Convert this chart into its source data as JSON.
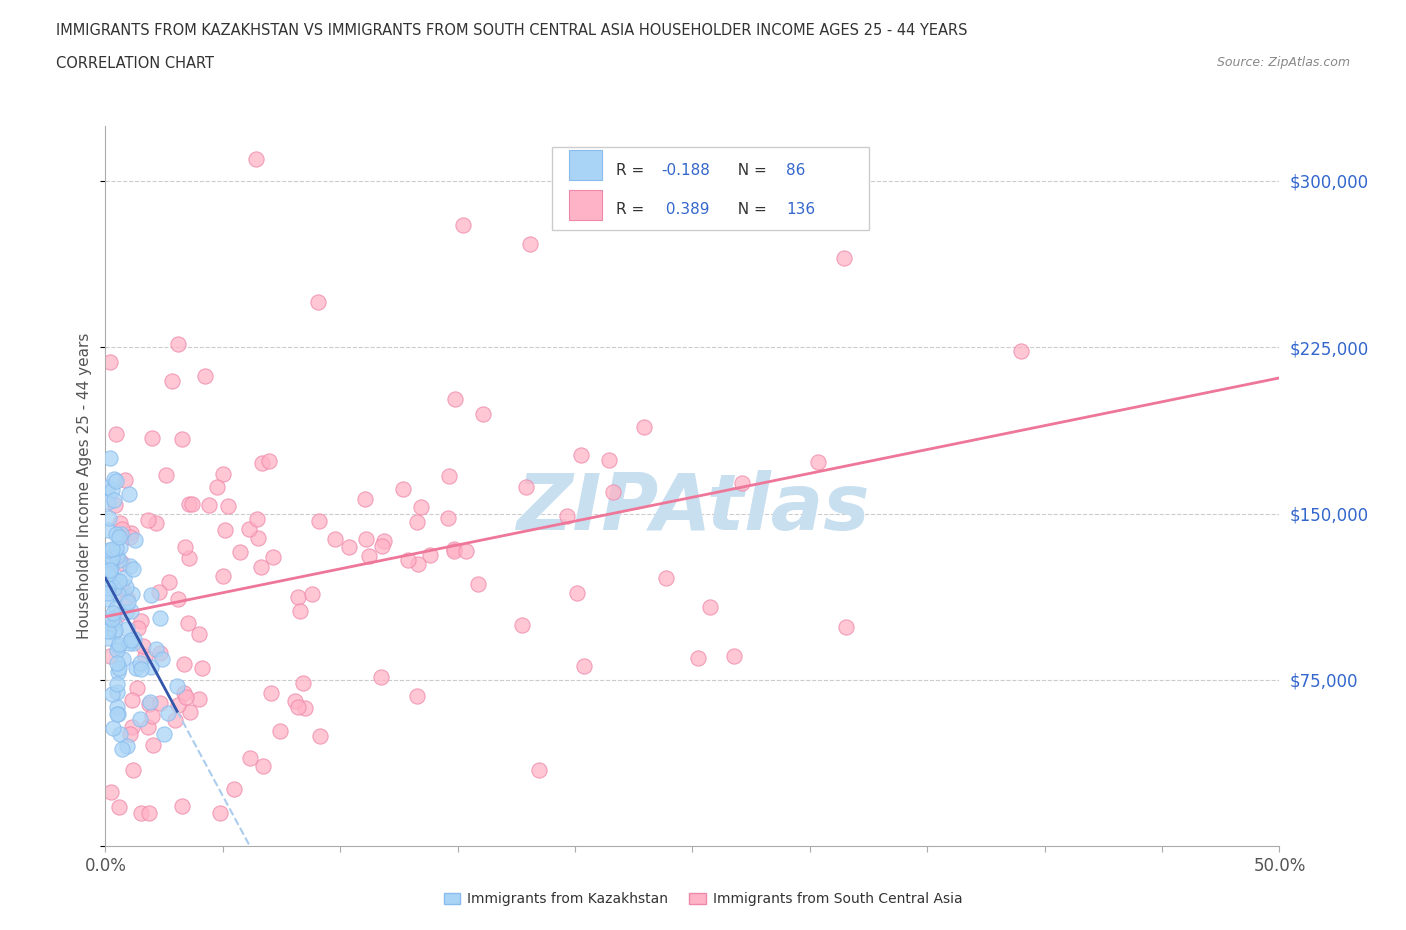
{
  "title_line1": "IMMIGRANTS FROM KAZAKHSTAN VS IMMIGRANTS FROM SOUTH CENTRAL ASIA HOUSEHOLDER INCOME AGES 25 - 44 YEARS",
  "title_line2": "CORRELATION CHART",
  "source_text": "Source: ZipAtlas.com",
  "ylabel": "Householder Income Ages 25 - 44 years",
  "xlim": [
    0.0,
    0.5
  ],
  "ylim": [
    0,
    325000
  ],
  "grid_color": "#cccccc",
  "background_color": "#ffffff",
  "kazakhstan_color": "#aad4f5",
  "kazakhstan_edge": "#88bbee",
  "sca_color": "#ffb3c6",
  "sca_edge": "#ee88aa",
  "regression_kaz_color": "#3355aa",
  "regression_kaz_dash_color": "#aaccee",
  "regression_sca_color": "#ee7799",
  "watermark_text": "ZIPAtlas",
  "watermark_color": "#c8dff0",
  "R_kaz": -0.188,
  "N_kaz": 86,
  "R_sca": 0.389,
  "N_sca": 136,
  "legend_R_color": "#3366cc",
  "legend_N_color": "#3366cc",
  "title_color": "#333333",
  "axis_label_color": "#555555",
  "ytick_color": "#3366cc",
  "xtick_color": "#555555"
}
